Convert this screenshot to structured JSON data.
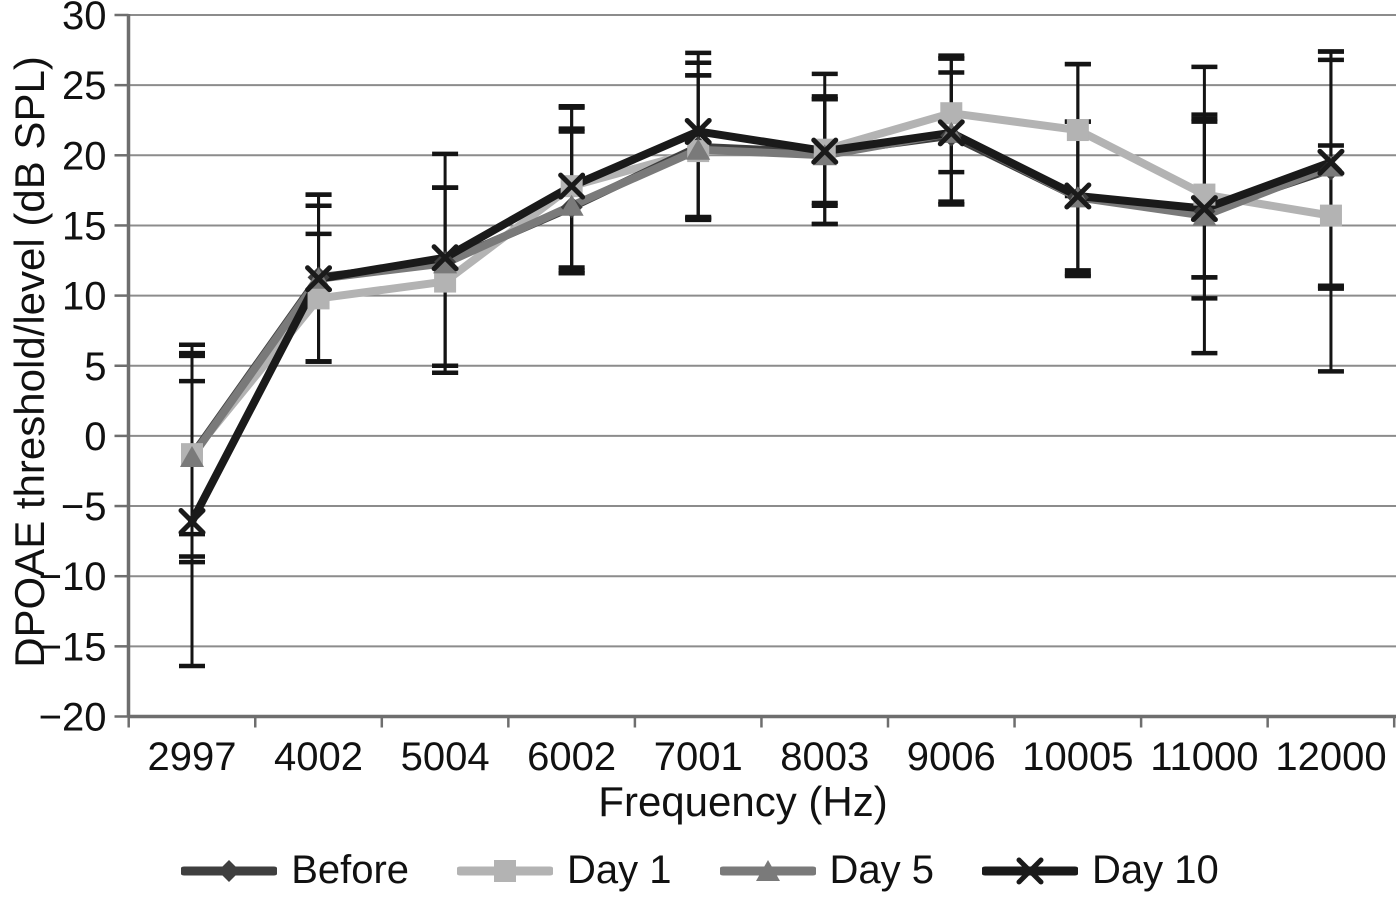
{
  "figure": {
    "background": "#ffffff",
    "text_color": "#111111",
    "gridline_color": "#8c8c8c",
    "axis_color": "#6e6e6e",
    "error_bar_color": "#141414"
  },
  "chart_data": {
    "type": "line",
    "title": "",
    "xlabel": "Frequency (Hz)",
    "ylabel": "DPOAE threshold/level (dB SPL)",
    "categories": [
      "2997",
      "4002",
      "5004",
      "6002",
      "7001",
      "8003",
      "9006",
      "10005",
      "11000",
      "12000"
    ],
    "ylim": [
      -20,
      30
    ],
    "yticks": [
      30,
      25,
      20,
      15,
      10,
      5,
      0,
      -5,
      -10,
      -15,
      -20
    ],
    "ytick_labels": [
      "30",
      "25",
      "20",
      "15",
      "10",
      "5",
      "0",
      "−5",
      "−10",
      "−15",
      "−20"
    ],
    "grid": true,
    "error_bars": true,
    "legend_position": "bottom",
    "series": [
      {
        "name": "Before",
        "marker": "diamond",
        "color": "#3f3f3f",
        "values": [
          -1.4,
          11.3,
          12.4,
          16.3,
          20.6,
          20.2,
          21.4,
          17.0,
          16.0,
          19.0
        ],
        "err_lo": [
          -9.0,
          5.3,
          5.0,
          11.6,
          15.5,
          15.1,
          16.5,
          11.5,
          11.3,
          10.6
        ],
        "err_hi": [
          5.9,
          17.2,
          17.7,
          21.7,
          25.7,
          24.0,
          26.9,
          22.4,
          22.6,
          27.4
        ]
      },
      {
        "name": "Day 1",
        "marker": "square",
        "color": "#b3b3b3",
        "values": [
          -1.3,
          9.8,
          11.0,
          17.8,
          20.3,
          20.4,
          23.0,
          21.8,
          17.2,
          15.7
        ],
        "err_lo": [
          -8.6,
          5.3,
          4.5,
          12.0,
          15.4,
          16.4,
          18.8,
          17.1,
          11.3,
          10.7
        ],
        "err_hi": [
          5.7,
          14.4,
          17.7,
          23.5,
          26.6,
          24.2,
          27.1,
          26.5,
          22.9,
          20.7
        ]
      },
      {
        "name": "Day 5",
        "marker": "triangle",
        "color": "#7a7a7a",
        "values": [
          -1.5,
          11.2,
          12.3,
          16.4,
          20.4,
          20.0,
          21.6,
          17.0,
          15.7,
          19.2
        ],
        "err_lo": [
          -7.0,
          5.3,
          5.0,
          11.6,
          15.5,
          15.1,
          16.7,
          11.4,
          9.8,
          10.5
        ],
        "err_hi": [
          3.9,
          16.4,
          17.7,
          21.9,
          25.7,
          24.0,
          25.9,
          22.4,
          22.4,
          26.8
        ]
      },
      {
        "name": "Day 10",
        "marker": "x",
        "color": "#1a1a1a",
        "values": [
          -6.1,
          11.2,
          12.7,
          17.8,
          21.7,
          20.3,
          21.6,
          17.1,
          16.2,
          19.5
        ],
        "err_lo": [
          -16.4,
          5.3,
          4.5,
          11.8,
          15.6,
          16.6,
          16.5,
          11.8,
          5.9,
          4.6
        ],
        "err_hi": [
          6.5,
          17.2,
          20.1,
          23.4,
          27.3,
          25.8,
          26.9,
          26.5,
          26.3,
          27.4
        ]
      }
    ]
  }
}
